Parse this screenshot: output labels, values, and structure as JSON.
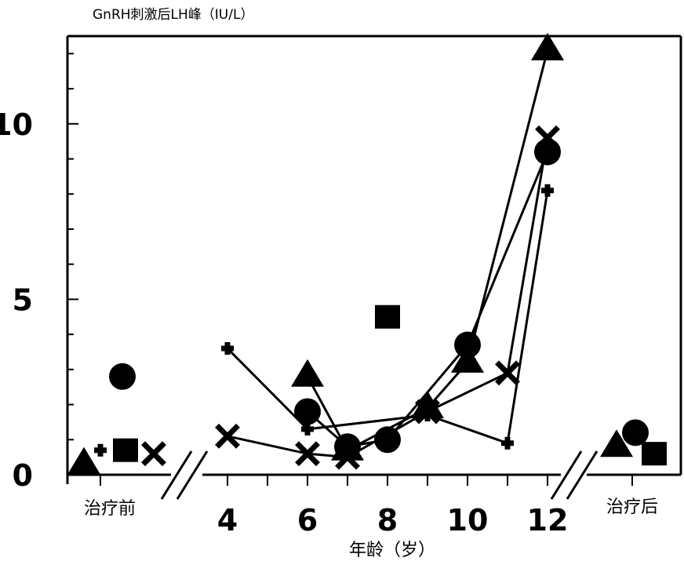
{
  "chart_data": {
    "type": "scatter",
    "ylabel": "GnRH刺激后LH峰（IU/L）",
    "xlabel": "年龄（岁）",
    "ylim": [
      0,
      12.5
    ],
    "y_ticks": [
      0,
      5,
      10
    ],
    "x_ticks": [
      "4",
      "6",
      "8",
      "10",
      "12"
    ],
    "group_labels": {
      "before": "治疗前",
      "after": "治疗后"
    },
    "series": [
      {
        "marker": "circle",
        "before": 2.8,
        "points": [
          {
            "x": 6,
            "y": 1.8
          },
          {
            "x": 7,
            "y": 0.8
          },
          {
            "x": 8,
            "y": 1.0
          },
          {
            "x": 10,
            "y": 3.7
          },
          {
            "x": 12,
            "y": 9.2
          }
        ],
        "after": 1.2
      },
      {
        "marker": "triangle",
        "before": 0.3,
        "points": [
          {
            "x": 6,
            "y": 2.8
          },
          {
            "x": 7,
            "y": 0.7
          },
          {
            "x": 9,
            "y": 1.9
          },
          {
            "x": 10,
            "y": 3.2
          },
          {
            "x": 12,
            "y": 12.1
          }
        ],
        "after": 0.8
      },
      {
        "marker": "cross",
        "before": 0.6,
        "points": [
          {
            "x": 4,
            "y": 1.1
          },
          {
            "x": 6,
            "y": 0.6
          },
          {
            "x": 7,
            "y": 0.5
          },
          {
            "x": 9,
            "y": 1.8
          },
          {
            "x": 11,
            "y": 2.9
          },
          {
            "x": 12,
            "y": 9.6
          }
        ],
        "after": null
      },
      {
        "marker": "plus",
        "before": 0.7,
        "points": [
          {
            "x": 4,
            "y": 3.6
          },
          {
            "x": 6,
            "y": 1.3
          },
          {
            "x": 9,
            "y": 1.7
          },
          {
            "x": 11,
            "y": 0.9
          },
          {
            "x": 12,
            "y": 8.1
          }
        ],
        "after": null
      },
      {
        "marker": "square",
        "before": 0.7,
        "points": [
          {
            "x": 8,
            "y": 4.5
          }
        ],
        "after": 0.6
      }
    ]
  }
}
